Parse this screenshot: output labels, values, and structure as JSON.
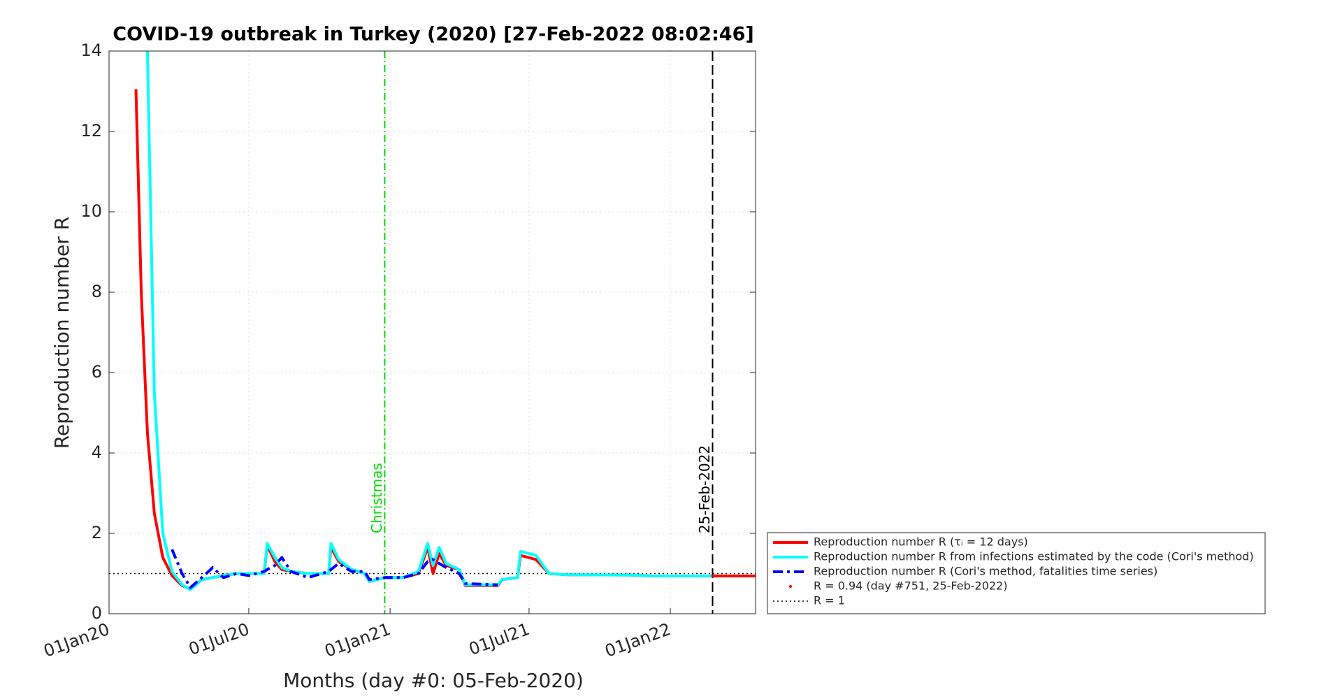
{
  "chart_data": {
    "type": "line",
    "title": "COVID-19 outbreak in Turkey (2020) [27-Feb-2022 08:02:46]",
    "xlabel": "Months (day #0: 05-Feb-2020)",
    "ylabel": "Reproduction number R",
    "x": [
      "2020-02-05",
      "2020-02-12",
      "2020-02-20",
      "2020-02-29",
      "2020-03-11",
      "2020-03-23",
      "2020-04-05",
      "2020-04-16",
      "2020-05-01",
      "2020-05-15",
      "2020-05-29",
      "2020-06-15",
      "2020-07-01",
      "2020-07-21",
      "2020-07-25",
      "2020-08-04",
      "2020-08-13",
      "2020-08-25",
      "2020-09-16",
      "2020-10-13",
      "2020-10-16",
      "2020-10-26",
      "2020-11-12",
      "2020-11-29",
      "2020-12-05",
      "2020-12-25",
      "2021-01-18",
      "2021-02-07",
      "2021-02-19",
      "2021-02-26",
      "2021-03-06",
      "2021-03-15",
      "2021-04-01",
      "2021-04-09",
      "2021-05-21",
      "2021-05-27",
      "2021-06-16",
      "2021-06-20",
      "2021-07-10",
      "2021-07-27",
      "2021-08-19",
      "2021-11-16",
      "2021-12-08",
      "2022-02-25",
      "2022-04-22"
    ],
    "series": [
      {
        "name": "Reproduction number R (τᵢ = 12 days)",
        "color": "#ff0000",
        "dash": "none",
        "width": 4,
        "values": [
          13.05,
          8.0,
          4.5,
          2.5,
          1.4,
          0.95,
          0.7,
          0.62,
          0.85,
          0.9,
          0.95,
          1.0,
          1.0,
          1.0,
          1.7,
          1.3,
          1.1,
          1.05,
          1.0,
          1.0,
          1.65,
          1.3,
          1.1,
          1.0,
          0.8,
          0.9,
          0.9,
          1.0,
          1.65,
          1.0,
          1.5,
          1.2,
          1.1,
          0.7,
          0.7,
          0.85,
          0.9,
          1.45,
          1.35,
          1.0,
          0.97,
          0.96,
          0.94,
          0.94,
          0.94
        ]
      },
      {
        "name": "Reproduction number R from infections estimated by the code (Cori's method)",
        "color": "#00ffff",
        "dash": "none",
        "width": 4,
        "values": [
          null,
          null,
          14,
          5.5,
          2.0,
          1.05,
          0.72,
          0.6,
          0.85,
          0.9,
          0.95,
          1.0,
          1.0,
          1.0,
          1.75,
          1.4,
          1.15,
          1.05,
          1.0,
          1.0,
          1.75,
          1.35,
          1.1,
          1.0,
          0.8,
          0.9,
          0.9,
          1.05,
          1.75,
          1.2,
          1.65,
          1.25,
          1.1,
          0.72,
          0.72,
          0.85,
          0.9,
          1.55,
          1.45,
          1.0,
          0.97,
          0.96,
          0.94,
          0.94,
          null
        ]
      },
      {
        "name": "Reproduction number R (Cori's method, fatalities time series)",
        "color": "#0000ff",
        "dash": "14 6 4 6",
        "width": 4,
        "values": [
          null,
          null,
          null,
          null,
          null,
          1.6,
          1.0,
          0.65,
          0.9,
          1.15,
          0.9,
          1.0,
          0.95,
          1.05,
          1.1,
          1.2,
          1.4,
          1.05,
          0.9,
          1.05,
          1.1,
          1.25,
          1.05,
          1.05,
          0.85,
          0.9,
          0.9,
          1.0,
          1.3,
          1.35,
          1.25,
          1.15,
          1.0,
          0.75,
          0.72,
          null,
          null,
          null,
          null,
          null,
          null,
          null,
          null,
          null,
          null
        ]
      }
    ],
    "point": {
      "name": "R = 0.94 (day #751, 25-Feb-2022)",
      "x": "2022-02-25",
      "value": 0.94,
      "color": "#ff0000"
    },
    "hline": {
      "name": "R = 1",
      "value": 1,
      "color": "#000000"
    },
    "vlines": [
      {
        "x": "2020-12-25",
        "label": "Christmas",
        "color": "#00dd00"
      },
      {
        "x": "2022-02-25",
        "label": "25-Feb-2022",
        "color": "#000000"
      }
    ],
    "xlim": [
      "2020-01-01",
      "2022-04-22"
    ],
    "xticks": [
      {
        "value": "2020-01-01",
        "label": "01Jan20"
      },
      {
        "value": "2020-07-01",
        "label": "01Jul20"
      },
      {
        "value": "2021-01-01",
        "label": "01Jan21"
      },
      {
        "value": "2021-07-01",
        "label": "01Jul21"
      },
      {
        "value": "2022-01-01",
        "label": "01Jan22"
      }
    ],
    "ylim": [
      0,
      14
    ],
    "yticks": [
      0,
      2,
      4,
      6,
      8,
      10,
      12,
      14
    ],
    "grid": true,
    "legend": "outside-bottom-right"
  }
}
